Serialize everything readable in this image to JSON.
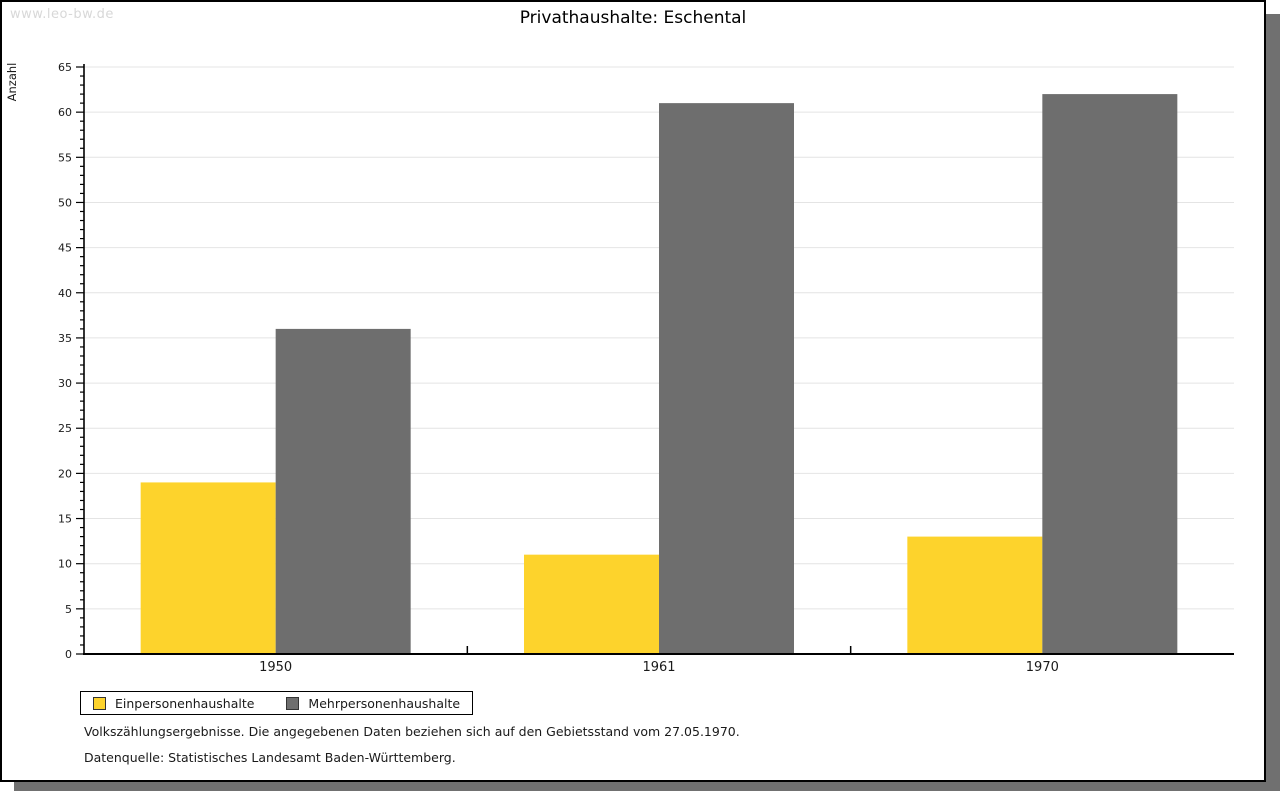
{
  "watermark": "www.leo-bw.de",
  "title": "Privathaushalte: Eschental",
  "footer": {
    "line1": "Volkszählungsergebnisse. Die angegebenen Daten beziehen sich auf den Gebietsstand vom 27.05.1970.",
    "line2": "Datenquelle: Statistisches Landesamt Baden-Württemberg."
  },
  "colors": {
    "series1": "#FDD32C",
    "series2": "#6E6E6E",
    "grid": "#E4E4E4",
    "axis": "#000000",
    "tick_label": "#1a1a1a",
    "watermark": "#D8D8D8",
    "shadow": "#707070"
  },
  "chart_data": {
    "type": "bar",
    "title": "Privathaushalte: Eschental",
    "ylabel": "Anzahl",
    "xlabel": "",
    "categories": [
      "1950",
      "1961",
      "1970"
    ],
    "series": [
      {
        "name": "Einpersonenhaushalte",
        "color": "#FDD32C",
        "values": [
          19,
          11,
          13
        ]
      },
      {
        "name": "Mehrpersonenhaushalte",
        "color": "#6E6E6E",
        "values": [
          36,
          61,
          62
        ]
      }
    ],
    "ylim": [
      0,
      65
    ],
    "ytick_step": 5,
    "minor_tick_step": 1,
    "grid": true,
    "legend_position": "bottom-left"
  }
}
